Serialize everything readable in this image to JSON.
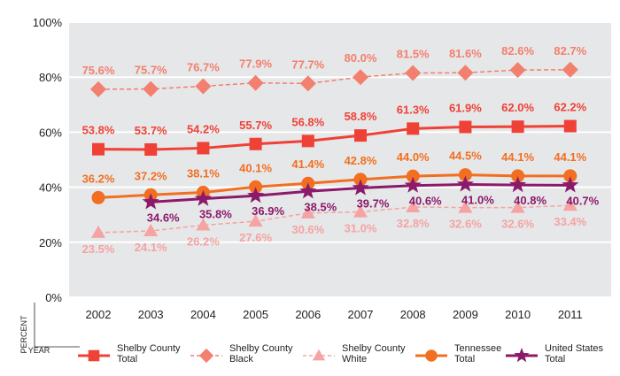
{
  "chart_data": {
    "type": "line",
    "title": "",
    "xlabel": "YEAR",
    "ylabel": "PERCENT",
    "ylim": [
      0,
      100
    ],
    "y_ticks": [
      "0%",
      "20%",
      "40%",
      "60%",
      "80%",
      "100%"
    ],
    "y_tick_values": [
      0,
      20,
      40,
      60,
      80,
      100
    ],
    "categories": [
      "2002",
      "2003",
      "2004",
      "2005",
      "2006",
      "2007",
      "2008",
      "2009",
      "2010",
      "2011"
    ],
    "series": [
      {
        "name": "Shelby County Total",
        "legend_lines": [
          "Shelby County",
          "Total"
        ],
        "marker": "square",
        "color": "#ef4136",
        "dashed": false,
        "values": [
          53.8,
          53.7,
          54.2,
          55.7,
          56.8,
          58.8,
          61.3,
          61.9,
          62.0,
          62.2
        ],
        "labels": [
          "53.8%",
          "53.7%",
          "54.2%",
          "55.7%",
          "56.8%",
          "58.8%",
          "61.3%",
          "61.9%",
          "62.0%",
          "62.2%"
        ]
      },
      {
        "name": "Shelby County Black",
        "legend_lines": [
          "Shelby County",
          "Black"
        ],
        "marker": "diamond",
        "color": "#f37f6e",
        "dashed": true,
        "values": [
          75.6,
          75.7,
          76.7,
          77.9,
          77.7,
          80.0,
          81.5,
          81.6,
          82.6,
          82.7
        ],
        "labels": [
          "75.6%",
          "75.7%",
          "76.7%",
          "77.9%",
          "77.7%",
          "80.0%",
          "81.5%",
          "81.6%",
          "82.6%",
          "82.7%"
        ]
      },
      {
        "name": "Shelby County White",
        "legend_lines": [
          "Shelby County",
          "White"
        ],
        "marker": "triangle",
        "color": "#f5a3a3",
        "dashed": true,
        "values": [
          23.5,
          24.1,
          26.2,
          27.6,
          30.6,
          31.0,
          32.8,
          32.6,
          32.6,
          33.4
        ],
        "labels": [
          "23.5%",
          "24.1%",
          "26.2%",
          "27.6%",
          "30.6%",
          "31.0%",
          "32.8%",
          "32.6%",
          "32.6%",
          "33.4%"
        ]
      },
      {
        "name": "Tennessee Total",
        "legend_lines": [
          "Tennessee",
          "Total"
        ],
        "marker": "circle",
        "color": "#f26f22",
        "dashed": false,
        "values": [
          36.2,
          37.2,
          38.1,
          40.1,
          41.4,
          42.8,
          44.0,
          44.5,
          44.1,
          44.1
        ],
        "labels": [
          "36.2%",
          "37.2%",
          "38.1%",
          "40.1%",
          "41.4%",
          "42.8%",
          "44.0%",
          "44.5%",
          "44.1%",
          "44.1%"
        ]
      },
      {
        "name": "United States Total",
        "legend_lines": [
          "United States",
          "Total"
        ],
        "marker": "star",
        "color": "#8b1a6b",
        "dashed": false,
        "values": [
          null,
          34.6,
          35.8,
          36.9,
          38.5,
          39.7,
          40.6,
          41.0,
          40.8,
          40.7
        ],
        "labels": [
          null,
          "34.6%",
          "35.8%",
          "36.9%",
          "38.5%",
          "39.7%",
          "40.6%",
          "41.0%",
          "40.8%",
          "40.7%"
        ]
      }
    ]
  }
}
